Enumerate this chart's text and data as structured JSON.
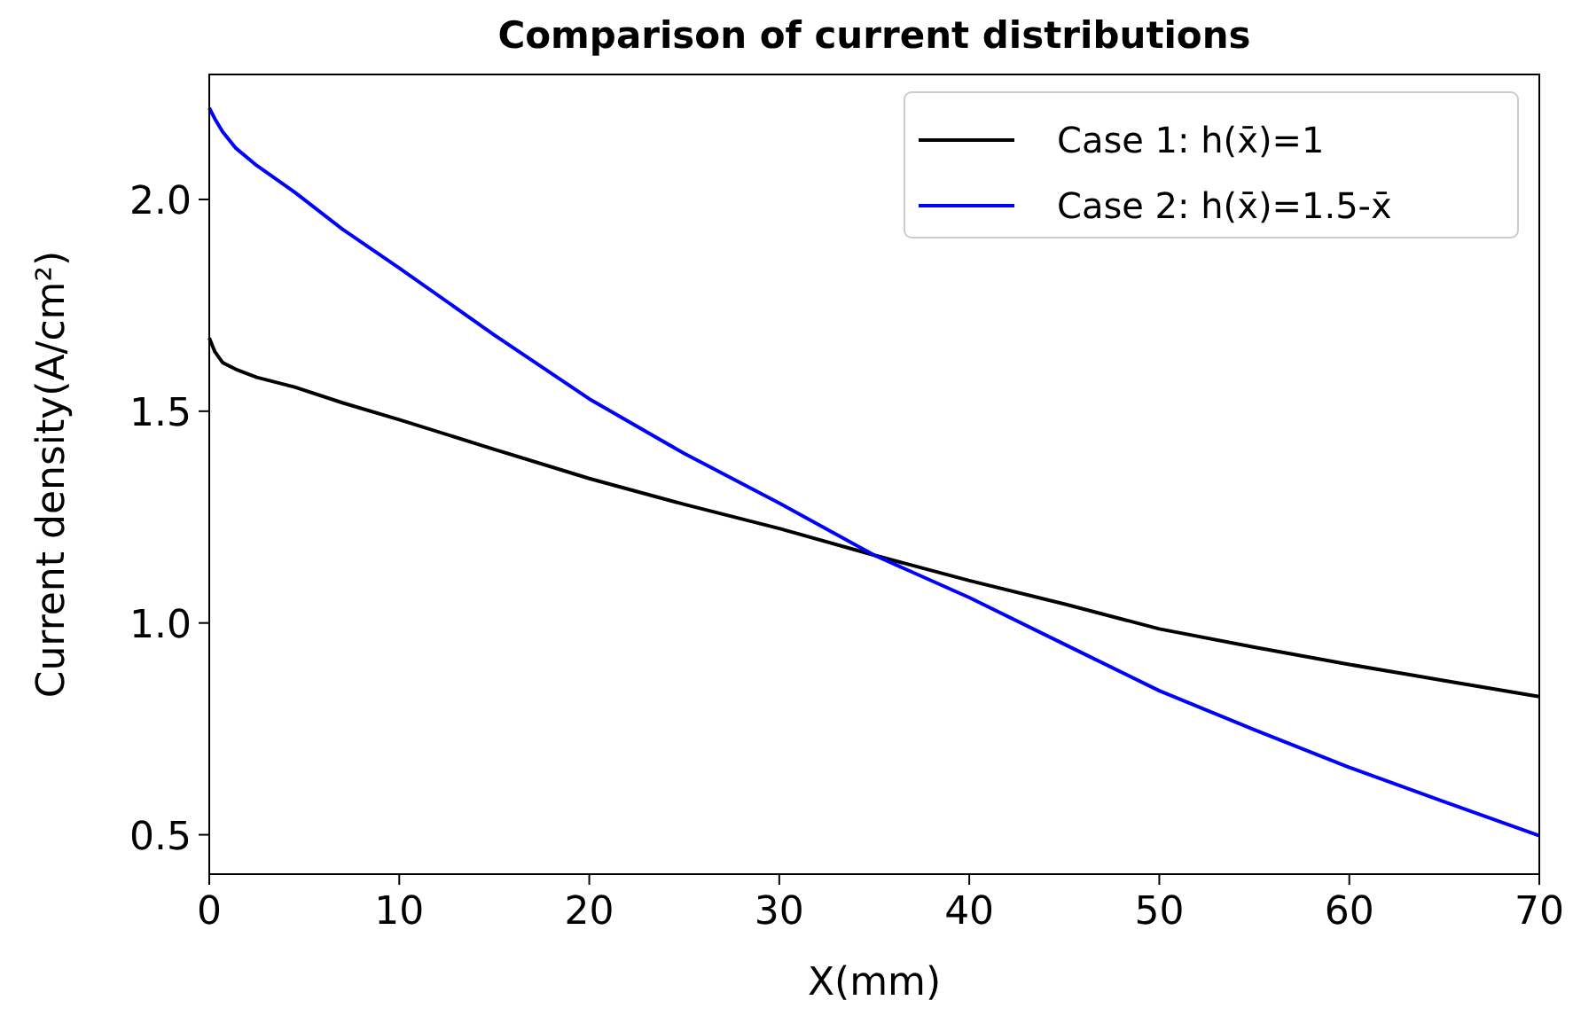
{
  "chart_data": {
    "type": "line",
    "title": "Comparison of current distributions",
    "xlabel": "X(mm)",
    "ylabel": "Current density(A/cm²)",
    "xlim": [
      0,
      70
    ],
    "ylim": [
      0.407,
      2.295
    ],
    "xticks": [
      0,
      10,
      20,
      30,
      40,
      50,
      60,
      70
    ],
    "yticks": [
      {
        "value": 0.5,
        "label": "0.5"
      },
      {
        "value": 1,
        "label": "1.0"
      },
      {
        "value": 1.5,
        "label": "1.5"
      },
      {
        "value": 2,
        "label": "2.0"
      }
    ],
    "grid": false,
    "legend": "top right",
    "marker": "none",
    "line_style": "solid",
    "x": [
      0,
      0.3,
      0.7,
      1.4,
      2.5,
      4.5,
      7,
      10,
      15,
      20,
      25,
      30,
      35,
      40,
      45,
      50,
      55,
      60,
      65,
      70
    ],
    "series": [
      {
        "name": "Case 1: h(x̄)=1",
        "color": "#000000",
        "values": [
          1.673,
          1.64,
          1.615,
          1.599,
          1.58,
          1.557,
          1.52,
          1.48,
          1.41,
          1.341,
          1.28,
          1.223,
          1.16,
          1.1,
          1.045,
          0.986,
          0.943,
          0.902,
          0.864,
          0.826
        ]
      },
      {
        "name": "Case 2: h(x̄)=1.5-x̄",
        "color": "#0000ff",
        "values": [
          2.216,
          2.19,
          2.16,
          2.121,
          2.08,
          2.017,
          1.93,
          1.838,
          1.68,
          1.529,
          1.4,
          1.283,
          1.16,
          1.06,
          0.95,
          0.84,
          0.748,
          0.659,
          0.578,
          0.498
        ]
      }
    ]
  }
}
